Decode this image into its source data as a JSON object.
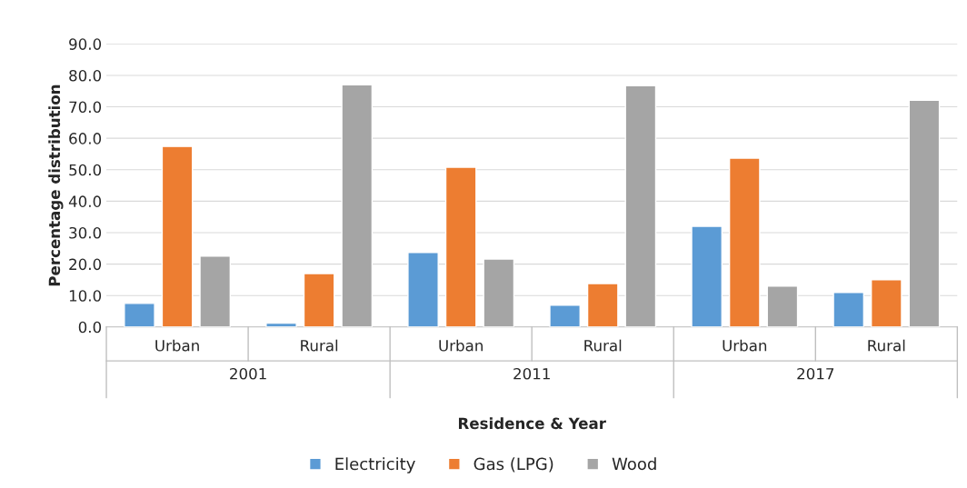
{
  "chart_data": {
    "type": "bar",
    "xlabel": "Residence & Year",
    "ylabel": "Percentage distribution",
    "categories": [
      "Urban",
      "Rural",
      "Urban",
      "Rural",
      "Urban",
      "Rural"
    ],
    "annotations": [
      "2001",
      "2011",
      "2017"
    ],
    "series": [
      {
        "name": "Electricity",
        "color": "#5b9bd5",
        "values": [
          7.5,
          1.2,
          23.7,
          6.9,
          32.0,
          11.0
        ]
      },
      {
        "name": "Gas (LPG)",
        "color": "#ed7d31",
        "values": [
          57.4,
          17.0,
          50.8,
          13.8,
          53.7,
          15.0
        ]
      },
      {
        "name": "Wood",
        "color": "#a5a5a5",
        "values": [
          22.5,
          77.0,
          21.6,
          76.7,
          13.0,
          72.1
        ]
      }
    ],
    "ylim": [
      0,
      90
    ],
    "yticks": [
      {
        "value": 0,
        "label": "0.0"
      },
      {
        "value": 10,
        "label": "10.0"
      },
      {
        "value": 20,
        "label": "20.0"
      },
      {
        "value": 30,
        "label": "30.0"
      },
      {
        "value": 40,
        "label": "40.0"
      },
      {
        "value": 50,
        "label": "50.0"
      },
      {
        "value": 60,
        "label": "60.0"
      },
      {
        "value": 70,
        "label": "70.0"
      },
      {
        "value": 80,
        "label": "80.0"
      },
      {
        "value": 90,
        "label": "90.0"
      }
    ],
    "grid": "y",
    "legend": "bottom"
  }
}
